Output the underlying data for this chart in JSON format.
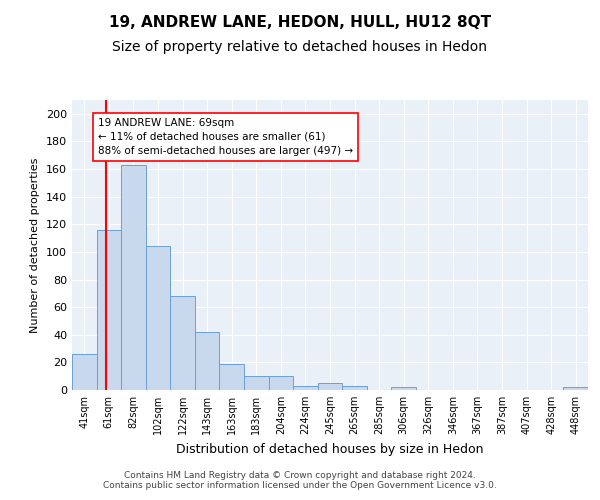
{
  "title1": "19, ANDREW LANE, HEDON, HULL, HU12 8QT",
  "title2": "Size of property relative to detached houses in Hedon",
  "xlabel": "Distribution of detached houses by size in Hedon",
  "ylabel": "Number of detached properties",
  "bin_labels": [
    "41sqm",
    "61sqm",
    "82sqm",
    "102sqm",
    "122sqm",
    "143sqm",
    "163sqm",
    "183sqm",
    "204sqm",
    "224sqm",
    "245sqm",
    "265sqm",
    "285sqm",
    "306sqm",
    "326sqm",
    "346sqm",
    "367sqm",
    "387sqm",
    "407sqm",
    "428sqm",
    "448sqm"
  ],
  "bar_heights": [
    26,
    116,
    163,
    104,
    68,
    42,
    19,
    10,
    10,
    3,
    5,
    3,
    0,
    2,
    0,
    0,
    0,
    0,
    0,
    0,
    2
  ],
  "bar_color": "#c9d9ed",
  "bar_edge_color": "#6a9fd8",
  "annotation_text": "19 ANDREW LANE: 69sqm\n← 11% of detached houses are smaller (61)\n88% of semi-detached houses are larger (497) →",
  "annotation_box_color": "white",
  "annotation_box_edge": "red",
  "red_line_color": "red",
  "ylim": [
    0,
    210
  ],
  "yticks": [
    0,
    20,
    40,
    60,
    80,
    100,
    120,
    140,
    160,
    180,
    200
  ],
  "footer": "Contains HM Land Registry data © Crown copyright and database right 2024.\nContains public sector information licensed under the Open Government Licence v3.0.",
  "plot_bg_color": "#eaf0f8",
  "grid_color": "white",
  "title_fontsize": 11,
  "subtitle_fontsize": 10
}
